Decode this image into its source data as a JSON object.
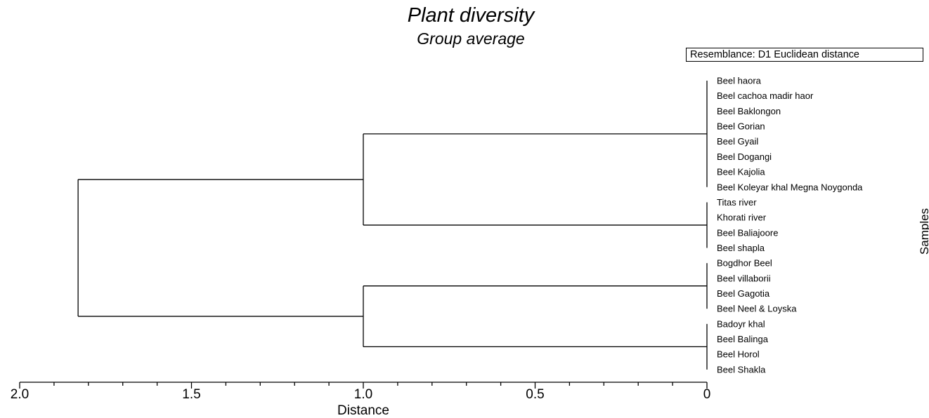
{
  "chart_data": {
    "type": "dendrogram",
    "title": "Plant diversity",
    "subtitle": "Group average",
    "resemblance": "Resemblance: D1 Euclidean distance",
    "xlabel": "Distance",
    "ylabel": "Samples",
    "xlim": [
      2.0,
      0
    ],
    "ticks": [
      {
        "value": 2.0,
        "label": "2.0"
      },
      {
        "value": 1.5,
        "label": "1.5"
      },
      {
        "value": 1.0,
        "label": "1.0"
      },
      {
        "value": 0.5,
        "label": "0.5"
      },
      {
        "value": 0,
        "label": "0"
      }
    ],
    "minor_tick_step": 0.1,
    "leaves": [
      "Beel haora",
      "Beel cachoa madir haor",
      "Beel Baklongon",
      "Beel Gorian",
      "Beel Gyail",
      "Beel Dogangi",
      "Beel Kajolia",
      "Beel Koleyar khal Megna Noygonda",
      "Titas river",
      "Khorati river",
      "Beel Baliajoore",
      "Beel shapla",
      "Bogdhor Beel",
      "Beel villaborii",
      "Beel Gagotia",
      "Beel Neel & Loyska",
      "Badoyr khal",
      "Beel Balinga",
      "Beel Horol",
      "Beel Shakla"
    ],
    "clusters": [
      {
        "id": "A",
        "leaves": [
          0,
          1,
          2,
          3,
          4,
          5,
          6,
          7
        ],
        "height": 0
      },
      {
        "id": "B",
        "leaves": [
          8,
          9,
          10,
          11
        ],
        "height": 0
      },
      {
        "id": "C",
        "leaves": [
          12,
          13,
          14,
          15
        ],
        "height": 0
      },
      {
        "id": "D",
        "leaves": [
          16,
          17,
          18,
          19
        ],
        "height": 0
      },
      {
        "id": "AB",
        "children": [
          "A",
          "B"
        ],
        "height": 1.0
      },
      {
        "id": "CD",
        "children": [
          "C",
          "D"
        ],
        "height": 1.0
      },
      {
        "id": "ROOT",
        "children": [
          "AB",
          "CD"
        ],
        "height": 1.83
      }
    ]
  }
}
